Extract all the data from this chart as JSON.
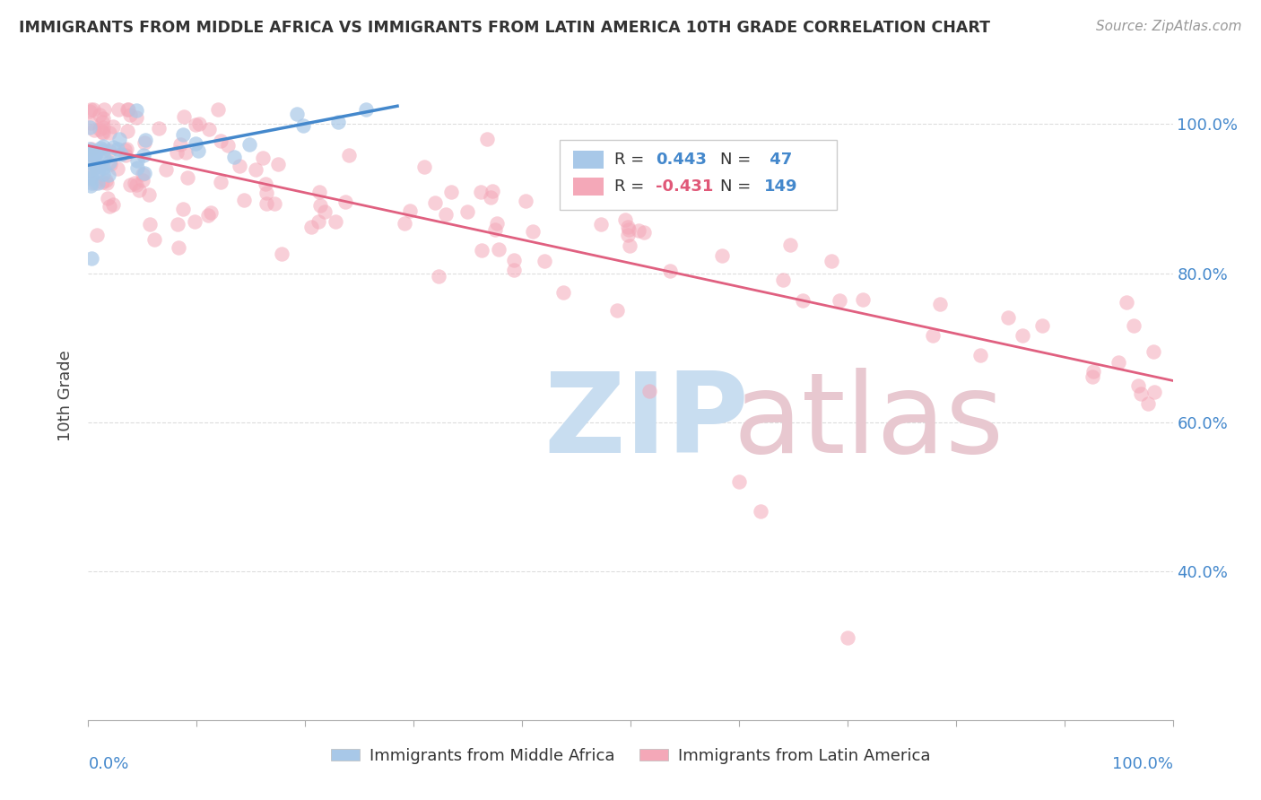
{
  "title": "IMMIGRANTS FROM MIDDLE AFRICA VS IMMIGRANTS FROM LATIN AMERICA 10TH GRADE CORRELATION CHART",
  "source": "Source: ZipAtlas.com",
  "ylabel": "10th Grade",
  "blue_label": "Immigrants from Middle Africa",
  "pink_label": "Immigrants from Latin America",
  "blue_R": "0.443",
  "blue_N": "47",
  "pink_R": "-0.431",
  "pink_N": "149",
  "blue_color": "#a8c8e8",
  "blue_line_color": "#4488cc",
  "pink_color": "#f4a8b8",
  "pink_line_color": "#e06080",
  "watermark_zip": "ZIP",
  "watermark_atlas": "atlas",
  "watermark_color_zip": "#c8ddf0",
  "watermark_color_atlas": "#e8c8d0",
  "background_color": "#ffffff",
  "grid_color": "#dddddd",
  "ytick_vals": [
    0.4,
    0.6,
    0.8,
    1.0
  ],
  "ytick_labels": [
    "40.0%",
    "60.0%",
    "80.0%",
    "100.0%"
  ],
  "xlim": [
    0.0,
    1.0
  ],
  "ylim": [
    0.2,
    1.07
  ]
}
